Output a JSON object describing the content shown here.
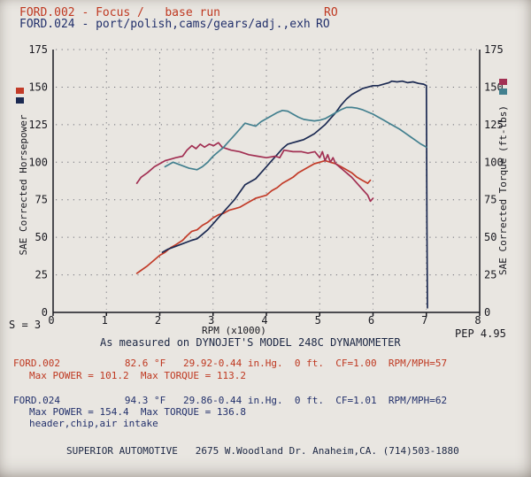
{
  "header": {
    "line1": {
      "label": "FORD.002 - Focus /   base run",
      "ro": "RO"
    },
    "line2": {
      "label": "FORD.024 - port/polish,cams/gears/adj.,exh",
      "ro": "RO"
    }
  },
  "colors": {
    "run1_ink": "#bf3820",
    "run2_ink": "#22306b",
    "axis": "#191920",
    "grid_dots": "#6f6f78",
    "paper": "#e9e6e1"
  },
  "chart_data": {
    "type": "line",
    "xlabel": "RPM (x1000)",
    "ylabel_left": "SAE Corrected Horsepower",
    "ylabel_right": "SAE Corrected Torque (ft-lbs)",
    "xlim": [
      0,
      8
    ],
    "ylim_left": [
      0,
      175
    ],
    "ylim_right": [
      0,
      175
    ],
    "x_ticks": [
      0,
      1,
      2,
      3,
      4,
      5,
      6,
      7,
      8
    ],
    "y_ticks": [
      0,
      25,
      50,
      75,
      100,
      125,
      150,
      175
    ],
    "grid": "dotted",
    "legend_left": [
      {
        "name": "FORD.002 power",
        "color": "#c23b28"
      },
      {
        "name": "FORD.024 power",
        "color": "#1c2a52"
      }
    ],
    "legend_right": [
      {
        "name": "FORD.002 torque",
        "color": "#a23053"
      },
      {
        "name": "FORD.024 torque",
        "color": "#43808f"
      }
    ],
    "series": [
      {
        "name": "FORD.002 horsepower (base run)",
        "axis": "left",
        "color": "#c23b28",
        "max": 101.2,
        "x": [
          1.57,
          1.65,
          1.77,
          1.9,
          2.0,
          2.1,
          2.2,
          2.3,
          2.43,
          2.51,
          2.6,
          2.7,
          2.8,
          2.9,
          3.0,
          3.1,
          3.2,
          3.3,
          3.4,
          3.5,
          3.6,
          3.7,
          3.8,
          3.9,
          4.0,
          4.1,
          4.2,
          4.3,
          4.4,
          4.5,
          4.6,
          4.7,
          4.8,
          4.9,
          5.0,
          5.1,
          5.2,
          5.3,
          5.4,
          5.5,
          5.6,
          5.7,
          5.8,
          5.9,
          5.95
        ],
        "y": [
          26,
          28,
          31,
          35,
          38,
          40,
          43,
          45,
          48,
          51,
          54,
          55,
          58,
          60,
          63,
          65,
          66,
          68,
          69,
          70,
          72,
          74,
          76,
          77,
          78,
          81,
          83,
          86,
          88,
          90,
          93,
          95,
          97,
          99,
          100,
          101,
          100,
          99,
          97,
          95,
          93,
          90,
          88,
          86,
          88
        ]
      },
      {
        "name": "FORD.024 horsepower (modified)",
        "axis": "left",
        "color": "#1c2a52",
        "max": 154.4,
        "x": [
          2.05,
          2.15,
          2.3,
          2.45,
          2.6,
          2.7,
          2.8,
          2.9,
          3.0,
          3.1,
          3.2,
          3.3,
          3.4,
          3.5,
          3.6,
          3.7,
          3.8,
          3.9,
          4.0,
          4.1,
          4.2,
          4.3,
          4.4,
          4.5,
          4.6,
          4.7,
          4.8,
          4.9,
          5.0,
          5.1,
          5.2,
          5.3,
          5.4,
          5.5,
          5.6,
          5.7,
          5.8,
          5.9,
          6.0,
          6.1,
          6.2,
          6.3,
          6.35,
          6.45,
          6.55,
          6.65,
          6.75,
          6.85,
          6.95,
          7.0,
          7.01,
          7.02
        ],
        "y": [
          40,
          42,
          44,
          46,
          48,
          49,
          52,
          55,
          59,
          63,
          67,
          71,
          75,
          80,
          85,
          87,
          89,
          93,
          97,
          101,
          105,
          109,
          112,
          113,
          114,
          115,
          117,
          119,
          122,
          125,
          129,
          133,
          138,
          142,
          145,
          147,
          149,
          150,
          151,
          151,
          152,
          153,
          154,
          153.5,
          154,
          153,
          153.5,
          152.5,
          152,
          151,
          60,
          3
        ]
      },
      {
        "name": "FORD.002 torque (base run)",
        "axis": "right",
        "color": "#a23053",
        "max": 113.2,
        "x": [
          1.57,
          1.65,
          1.77,
          1.9,
          2.0,
          2.1,
          2.2,
          2.3,
          2.43,
          2.51,
          2.6,
          2.68,
          2.76,
          2.84,
          2.93,
          3.01,
          3.1,
          3.17,
          3.34,
          3.5,
          3.67,
          3.83,
          4.0,
          4.17,
          4.25,
          4.33,
          4.5,
          4.66,
          4.78,
          4.91,
          5.0,
          5.05,
          5.1,
          5.15,
          5.2,
          5.25,
          5.3,
          5.4,
          5.5,
          5.6,
          5.7,
          5.8,
          5.9,
          5.95,
          6.0
        ],
        "y": [
          86,
          90,
          93,
          97,
          99,
          101,
          102,
          103,
          104,
          108,
          111,
          109,
          112,
          110,
          112,
          111,
          113,
          110,
          108,
          107,
          105,
          104,
          103,
          104,
          103,
          108,
          107,
          107,
          106,
          107,
          103,
          107,
          101,
          105,
          100,
          103,
          99,
          96,
          93,
          90,
          86,
          82,
          78,
          74,
          76
        ]
      },
      {
        "name": "FORD.024 torque (modified)",
        "axis": "right",
        "color": "#43808f",
        "max": 136.8,
        "x": [
          2.1,
          2.25,
          2.4,
          2.55,
          2.7,
          2.8,
          2.9,
          3.0,
          3.1,
          3.2,
          3.3,
          3.4,
          3.5,
          3.6,
          3.7,
          3.8,
          3.9,
          4.0,
          4.1,
          4.2,
          4.3,
          4.4,
          4.5,
          4.6,
          4.7,
          4.8,
          4.9,
          5.0,
          5.1,
          5.2,
          5.3,
          5.4,
          5.5,
          5.6,
          5.7,
          5.8,
          5.9,
          6.0,
          6.1,
          6.2,
          6.3,
          6.4,
          6.5,
          6.6,
          6.7,
          6.8,
          6.9,
          7.0
        ],
        "y": [
          97,
          100,
          98,
          96,
          95,
          97,
          100,
          104,
          107,
          110,
          114,
          118,
          122,
          126,
          125,
          124,
          127,
          129,
          131,
          133,
          134.5,
          134,
          132,
          130,
          128.5,
          128,
          127.5,
          128,
          129,
          131,
          133,
          135,
          136.5,
          136.5,
          136,
          135,
          133.5,
          132,
          130,
          128,
          126,
          124,
          122,
          119.5,
          117,
          114.5,
          112,
          110
        ]
      }
    ]
  },
  "footnotes": {
    "smoothing": "S = 3",
    "pep": "PEP 4.95",
    "measured": "As measured on DYNOJET'S MODEL 248C DYNAMOMETER"
  },
  "runs": [
    {
      "id": "FORD.002",
      "color": "#bf3820",
      "max_power": 101.2,
      "max_torque": 113.2,
      "line1": "FORD.002           82.6 °F   29.92-0.44 in.Hg.  0 ft.  CF=1.00  RPM/MPH=57",
      "line2": "Max POWER = 101.2  Max TORQUE = 113.2",
      "line3": ""
    },
    {
      "id": "FORD.024",
      "color": "#22306b",
      "max_power": 154.4,
      "max_torque": 136.8,
      "line1": "FORD.024           94.3 °F   29.86-0.44 in.Hg.  0 ft.  CF=1.01  RPM/MPH=62",
      "line2": "Max POWER = 154.4  Max TORQUE = 136.8",
      "line3": "header,chip,air intake"
    }
  ],
  "footer": "SUPERIOR AUTOMOTIVE   2675 W.Woodland Dr. Anaheim,CA. (714)503-1880"
}
